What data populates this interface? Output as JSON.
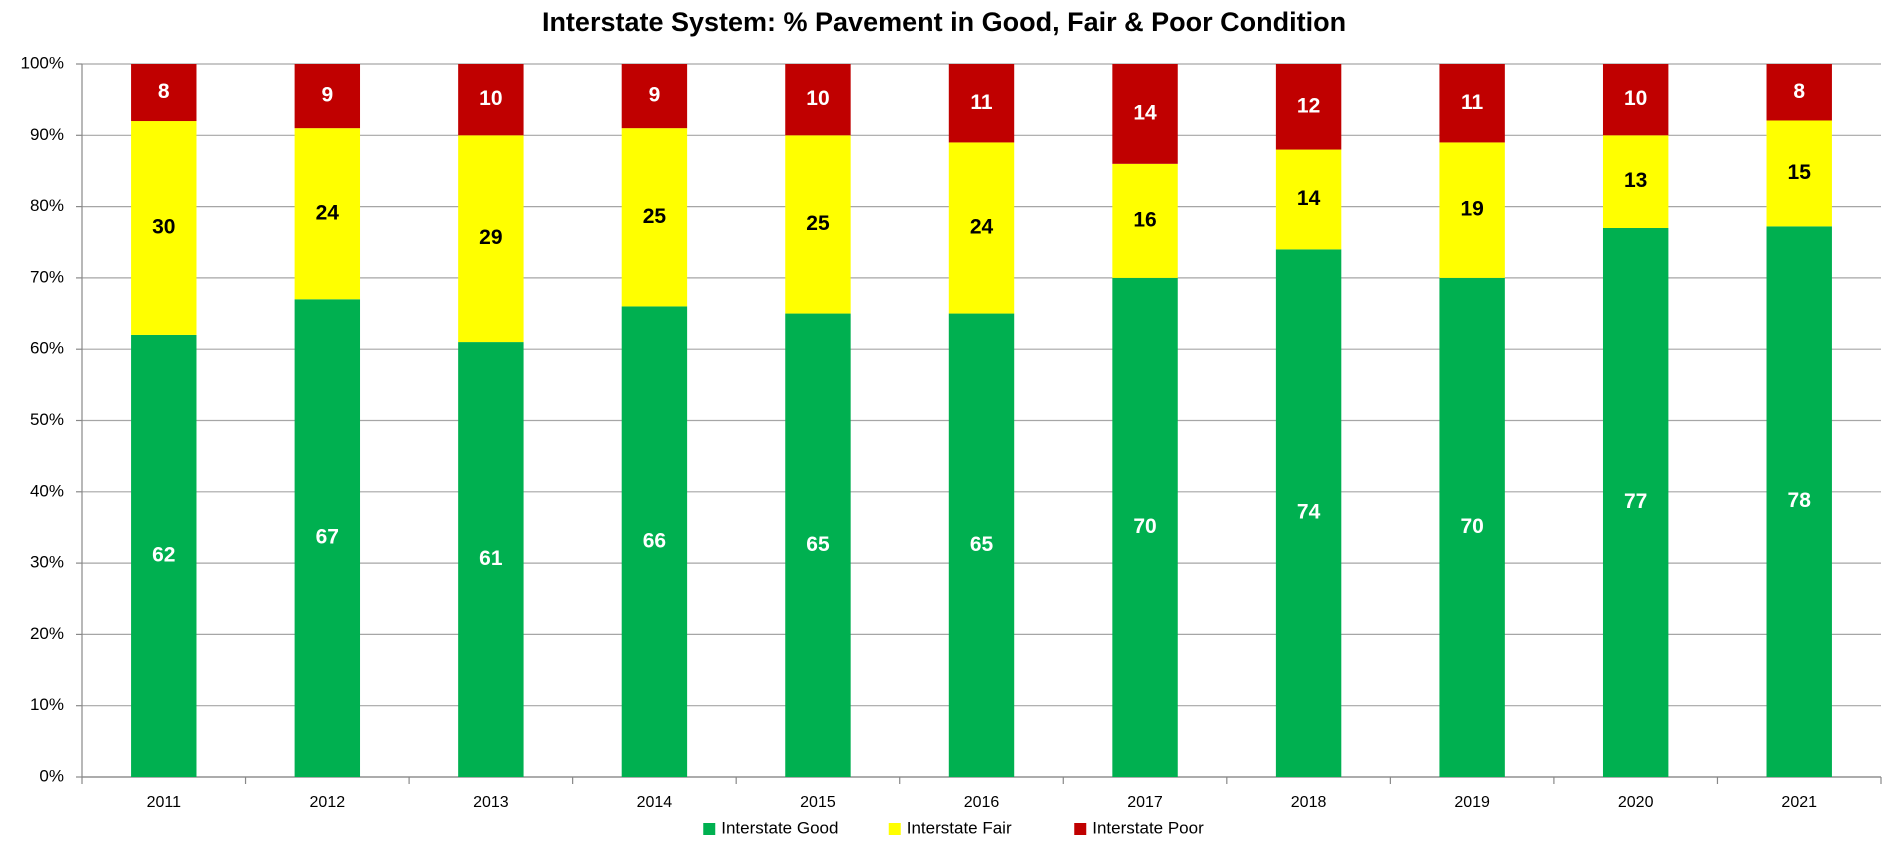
{
  "chart_data": {
    "type": "bar",
    "stack": "percent",
    "title": "Interstate System:  % Pavement in Good, Fair & Poor Condition",
    "categories": [
      "2011",
      "2012",
      "2013",
      "2014",
      "2015",
      "2016",
      "2017",
      "2018",
      "2019",
      "2020",
      "2021"
    ],
    "series": [
      {
        "name": "Interstate Good",
        "color": "#00b050",
        "label_color": "#ffffff",
        "values": [
          62,
          67,
          61,
          66,
          65,
          65,
          70,
          74,
          70,
          77,
          78
        ]
      },
      {
        "name": "Interstate Fair",
        "color": "#ffff00",
        "label_color": "#000000",
        "values": [
          30,
          24,
          29,
          25,
          25,
          24,
          16,
          14,
          19,
          13,
          15
        ]
      },
      {
        "name": "Interstate Poor",
        "color": "#c00000",
        "label_color": "#ffffff",
        "values": [
          8,
          9,
          10,
          9,
          10,
          11,
          14,
          12,
          11,
          10,
          8
        ]
      }
    ],
    "ylim": [
      0,
      100
    ],
    "yticks": [
      {
        "value": 0,
        "label": "0%"
      },
      {
        "value": 10,
        "label": "10%"
      },
      {
        "value": 20,
        "label": "20%"
      },
      {
        "value": 30,
        "label": "30%"
      },
      {
        "value": 40,
        "label": "40%"
      },
      {
        "value": 50,
        "label": "50%"
      },
      {
        "value": 60,
        "label": "60%"
      },
      {
        "value": 70,
        "label": "70%"
      },
      {
        "value": 80,
        "label": "80%"
      },
      {
        "value": 90,
        "label": "90%"
      },
      {
        "value": 100,
        "label": "100%"
      }
    ],
    "grid": true,
    "legend": "bottom"
  }
}
